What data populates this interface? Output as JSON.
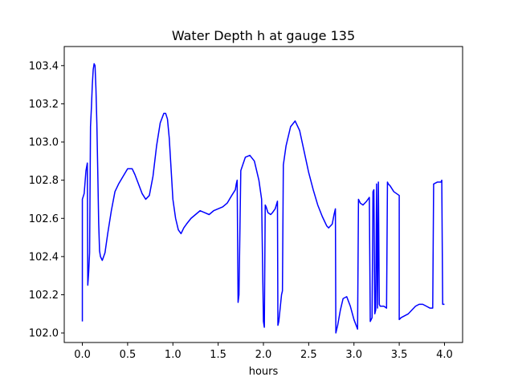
{
  "chart_data": {
    "type": "line",
    "title": "Water Depth h at gauge 135",
    "xlabel": "hours",
    "ylabel": "",
    "xlim": [
      -0.2,
      4.2
    ],
    "ylim": [
      101.95,
      103.5
    ],
    "xticks": [
      0.0,
      0.5,
      1.0,
      1.5,
      2.0,
      2.5,
      3.0,
      3.5,
      4.0
    ],
    "xtick_labels": [
      "0.0",
      "0.5",
      "1.0",
      "1.5",
      "2.0",
      "2.5",
      "3.0",
      "3.5",
      "4.0"
    ],
    "yticks": [
      102.0,
      102.2,
      102.4,
      102.6,
      102.8,
      103.0,
      103.2,
      103.4
    ],
    "ytick_labels": [
      "102.0",
      "102.2",
      "102.4",
      "102.6",
      "102.8",
      "103.0",
      "103.2",
      "103.4"
    ],
    "grid": false,
    "series": [
      {
        "color": "#0000ff",
        "x": [
          0.0,
          0.0,
          0.02,
          0.04,
          0.055,
          0.06,
          0.07,
          0.08,
          0.09,
          0.1,
          0.11,
          0.12,
          0.13,
          0.14,
          0.15,
          0.16,
          0.17,
          0.18,
          0.19,
          0.2,
          0.22,
          0.25,
          0.28,
          0.32,
          0.36,
          0.4,
          0.45,
          0.5,
          0.55,
          0.58,
          0.62,
          0.66,
          0.7,
          0.74,
          0.78,
          0.82,
          0.86,
          0.9,
          0.92,
          0.94,
          0.96,
          0.98,
          1.0,
          1.03,
          1.06,
          1.09,
          1.12,
          1.15,
          1.2,
          1.25,
          1.3,
          1.35,
          1.4,
          1.45,
          1.5,
          1.55,
          1.6,
          1.65,
          1.69,
          1.7,
          1.71,
          1.72,
          1.73,
          1.75,
          1.8,
          1.85,
          1.9,
          1.95,
          1.98,
          2.0,
          2.01,
          2.02,
          2.03,
          2.05,
          2.08,
          2.1,
          2.13,
          2.155,
          2.16,
          2.17,
          2.2,
          2.21,
          2.22,
          2.25,
          2.3,
          2.35,
          2.4,
          2.45,
          2.5,
          2.55,
          2.6,
          2.65,
          2.7,
          2.72,
          2.76,
          2.78,
          2.795,
          2.8,
          2.82,
          2.85,
          2.88,
          2.92,
          2.96,
          3.0,
          3.04,
          3.05,
          3.07,
          3.1,
          3.14,
          3.17,
          3.18,
          3.2,
          3.21,
          3.22,
          3.23,
          3.24,
          3.25,
          3.26,
          3.27,
          3.28,
          3.29,
          3.3,
          3.33,
          3.36,
          3.37,
          3.38,
          3.4,
          3.44,
          3.47,
          3.5,
          3.5,
          3.52,
          3.56,
          3.6,
          3.64,
          3.68,
          3.72,
          3.76,
          3.8,
          3.84,
          3.87,
          3.88,
          3.92,
          3.96,
          3.97,
          3.98,
          4.0
        ],
        "y": [
          102.06,
          102.7,
          102.73,
          102.85,
          102.89,
          102.25,
          102.32,
          102.42,
          103.08,
          103.18,
          103.3,
          103.38,
          103.41,
          103.4,
          103.28,
          103.1,
          102.85,
          102.58,
          102.43,
          102.4,
          102.38,
          102.42,
          102.52,
          102.64,
          102.74,
          102.78,
          102.82,
          102.86,
          102.86,
          102.83,
          102.78,
          102.73,
          102.7,
          102.72,
          102.82,
          102.98,
          103.1,
          103.15,
          103.15,
          103.12,
          103.02,
          102.86,
          102.7,
          102.6,
          102.54,
          102.52,
          102.55,
          102.57,
          102.6,
          102.62,
          102.64,
          102.63,
          102.62,
          102.64,
          102.65,
          102.66,
          102.68,
          102.72,
          102.75,
          102.78,
          102.8,
          102.16,
          102.2,
          102.85,
          102.92,
          102.93,
          102.9,
          102.8,
          102.7,
          102.06,
          102.03,
          102.67,
          102.66,
          102.63,
          102.62,
          102.63,
          102.65,
          102.69,
          102.04,
          102.06,
          102.2,
          102.22,
          102.88,
          102.98,
          103.08,
          103.11,
          103.06,
          102.95,
          102.84,
          102.75,
          102.67,
          102.61,
          102.56,
          102.55,
          102.57,
          102.62,
          102.65,
          102.0,
          102.04,
          102.12,
          102.18,
          102.19,
          102.14,
          102.07,
          102.02,
          102.7,
          102.68,
          102.67,
          102.69,
          102.71,
          102.06,
          102.08,
          102.74,
          102.75,
          102.1,
          102.12,
          102.78,
          102.13,
          102.79,
          102.15,
          102.14,
          102.14,
          102.14,
          102.13,
          102.79,
          102.78,
          102.77,
          102.74,
          102.73,
          102.72,
          102.07,
          102.08,
          102.09,
          102.1,
          102.12,
          102.14,
          102.15,
          102.15,
          102.14,
          102.13,
          102.13,
          102.78,
          102.79,
          102.79,
          102.8,
          102.15,
          102.15
        ]
      }
    ]
  }
}
